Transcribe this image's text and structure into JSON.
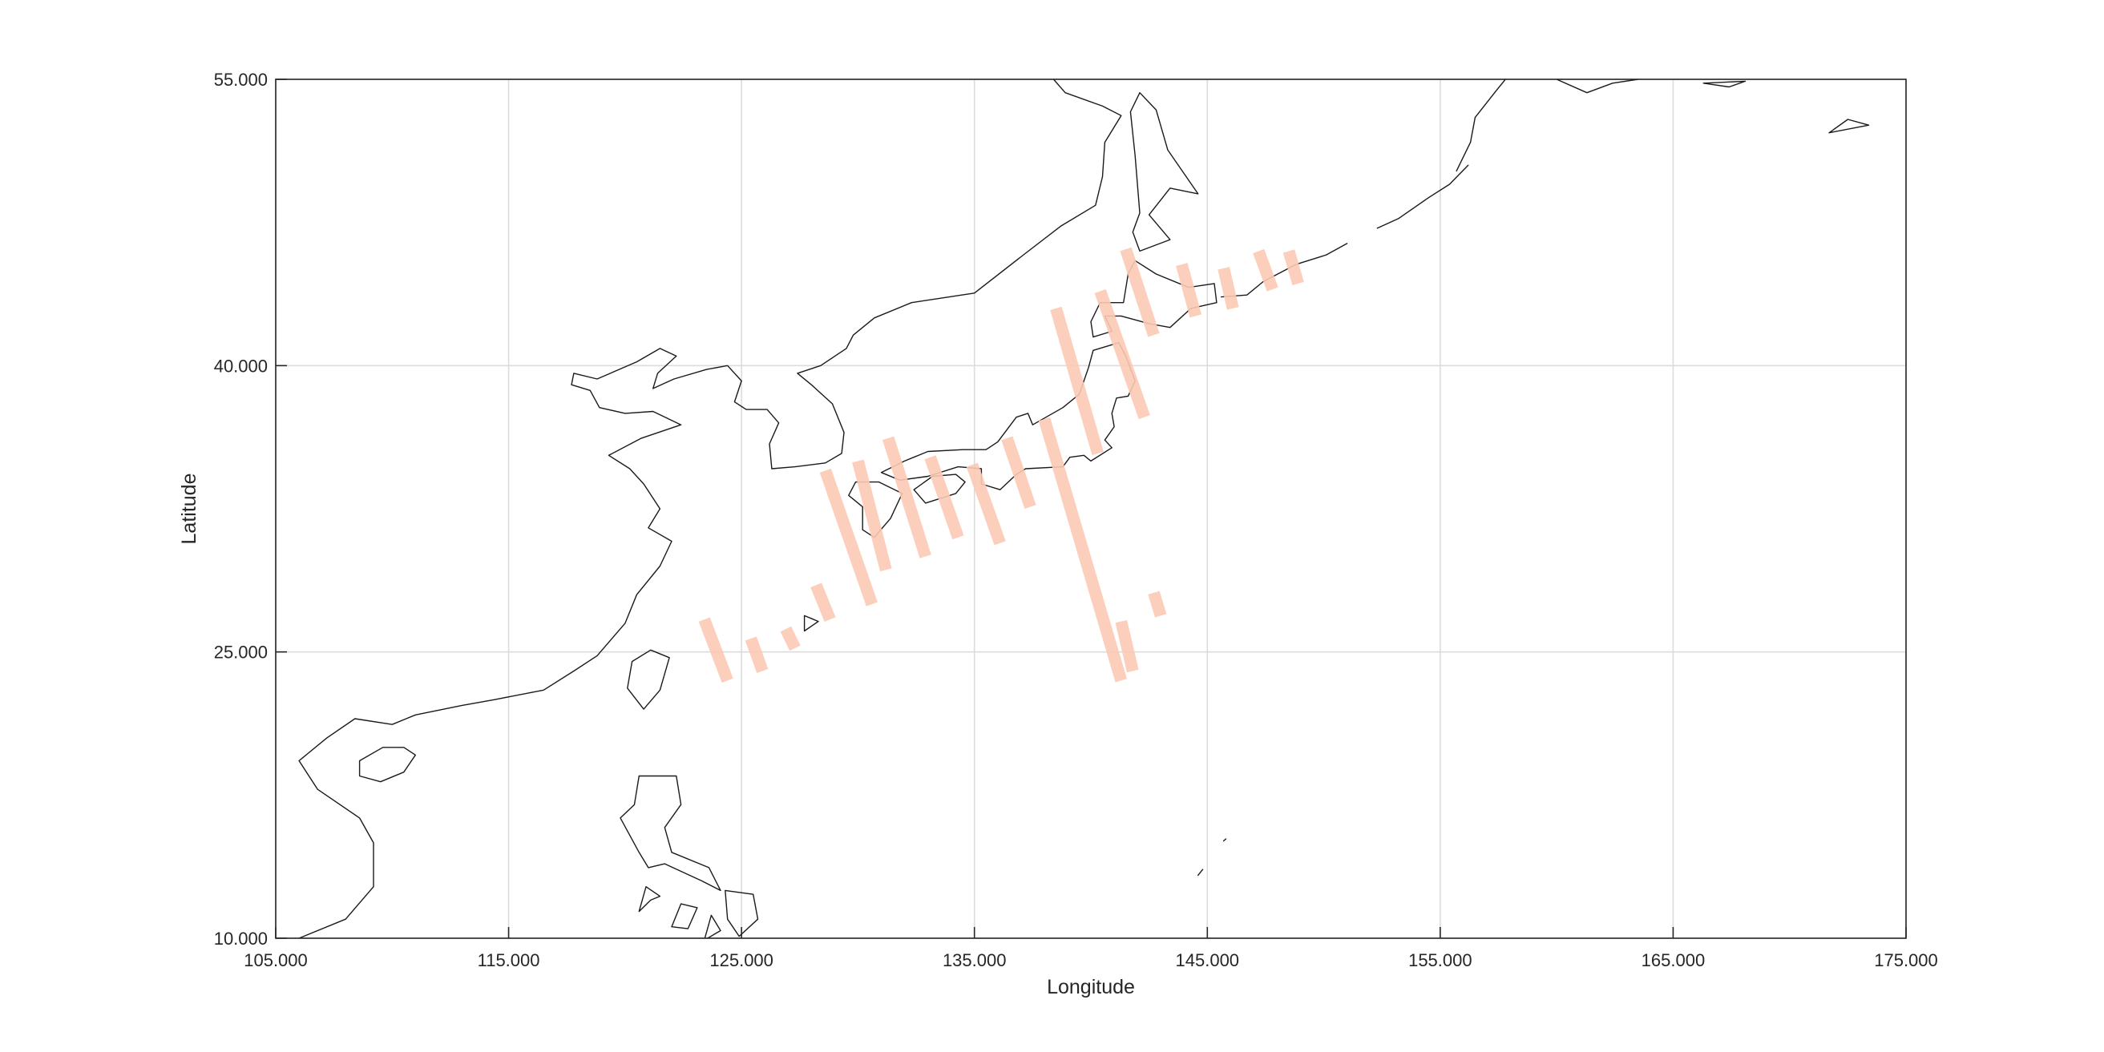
{
  "chart_data": {
    "type": "map",
    "xlabel": "Longitude",
    "ylabel": "Latitude",
    "xlim": [
      105,
      175
    ],
    "ylim": [
      10,
      55
    ],
    "xticks": [
      105,
      115,
      125,
      135,
      145,
      155,
      165,
      175
    ],
    "yticks": [
      10,
      25,
      40,
      55
    ],
    "xtick_labels": [
      "105.000",
      "115.000",
      "125.000",
      "135.000",
      "145.000",
      "155.000",
      "165.000",
      "175.000"
    ],
    "ytick_labels": [
      "10.000",
      "25.000",
      "40.000",
      "55.000"
    ],
    "grid": true,
    "track_color": "#fcc9b5",
    "coast_color": "#1a1a1a",
    "tracks": [
      {
        "from": [
          123.4,
          26.7
        ],
        "to": [
          124.4,
          23.5
        ]
      },
      {
        "from": [
          125.4,
          25.7
        ],
        "to": [
          125.9,
          24.0
        ]
      },
      {
        "from": [
          126.9,
          26.2
        ],
        "to": [
          127.3,
          25.2
        ]
      },
      {
        "from": [
          128.2,
          28.5
        ],
        "to": [
          128.8,
          26.7
        ]
      },
      {
        "from": [
          128.6,
          34.5
        ],
        "to": [
          130.6,
          27.5
        ]
      },
      {
        "from": [
          130.0,
          35.0
        ],
        "to": [
          131.2,
          29.3
        ]
      },
      {
        "from": [
          131.3,
          36.2
        ],
        "to": [
          132.9,
          30.0
        ]
      },
      {
        "from": [
          133.1,
          35.2
        ],
        "to": [
          134.3,
          31.0
        ]
      },
      {
        "from": [
          134.9,
          34.8
        ],
        "to": [
          136.1,
          30.7
        ]
      },
      {
        "from": [
          136.4,
          36.2
        ],
        "to": [
          137.4,
          32.6
        ]
      },
      {
        "from": [
          138.0,
          37.2
        ],
        "to": [
          141.3,
          23.5
        ]
      },
      {
        "from": [
          138.5,
          43.0
        ],
        "to": [
          140.3,
          35.4
        ]
      },
      {
        "from": [
          140.4,
          43.9
        ],
        "to": [
          142.3,
          37.3
        ]
      },
      {
        "from": [
          141.5,
          46.1
        ],
        "to": [
          142.7,
          41.6
        ]
      },
      {
        "from": [
          143.9,
          45.3
        ],
        "to": [
          144.5,
          42.6
        ]
      },
      {
        "from": [
          145.7,
          45.1
        ],
        "to": [
          146.1,
          43.0
        ]
      },
      {
        "from": [
          147.2,
          46.0
        ],
        "to": [
          147.8,
          44.0
        ]
      },
      {
        "from": [
          148.5,
          46.0
        ],
        "to": [
          148.9,
          44.3
        ]
      },
      {
        "from": [
          141.3,
          26.6
        ],
        "to": [
          141.8,
          24.0
        ]
      },
      {
        "from": [
          142.7,
          28.1
        ],
        "to": [
          143.0,
          26.9
        ]
      }
    ],
    "coastlines": [
      [
        [
          106,
          10
        ],
        [
          108,
          11
        ],
        [
          109.2,
          12.7
        ],
        [
          109.2,
          15
        ],
        [
          108.6,
          16.3
        ],
        [
          106.8,
          17.8
        ],
        [
          106,
          19.3
        ],
        [
          107.2,
          20.5
        ],
        [
          108.4,
          21.5
        ],
        [
          110,
          21.2
        ],
        [
          111,
          21.7
        ],
        [
          113,
          22.2
        ],
        [
          114.4,
          22.5
        ],
        [
          116.5,
          23
        ],
        [
          117.8,
          24
        ],
        [
          118.8,
          24.8
        ],
        [
          120,
          26.5
        ],
        [
          120.5,
          28
        ],
        [
          121.5,
          29.5
        ],
        [
          122,
          30.8
        ],
        [
          121,
          31.5
        ],
        [
          121.5,
          32.5
        ],
        [
          120.8,
          33.8
        ],
        [
          120.2,
          34.6
        ],
        [
          119.3,
          35.3
        ],
        [
          120.7,
          36.2
        ],
        [
          122.4,
          36.9
        ],
        [
          121.2,
          37.6
        ],
        [
          120,
          37.5
        ],
        [
          118.9,
          37.8
        ],
        [
          118.5,
          38.7
        ],
        [
          117.7,
          39
        ],
        [
          117.8,
          39.6
        ],
        [
          118.8,
          39.3
        ],
        [
          120.5,
          40.2
        ],
        [
          121.5,
          40.9
        ],
        [
          122.2,
          40.5
        ],
        [
          121.4,
          39.6
        ],
        [
          121.2,
          38.8
        ],
        [
          122.1,
          39.3
        ],
        [
          123.5,
          39.8
        ],
        [
          124.4,
          40
        ],
        [
          125,
          39.2
        ],
        [
          124.7,
          38.1
        ],
        [
          125.2,
          37.7
        ],
        [
          126.1,
          37.7
        ],
        [
          126.6,
          37
        ],
        [
          126.2,
          35.9
        ],
        [
          126.3,
          34.6
        ],
        [
          127.3,
          34.7
        ],
        [
          128.6,
          34.9
        ],
        [
          129.3,
          35.4
        ],
        [
          129.4,
          36.5
        ],
        [
          128.9,
          38
        ],
        [
          128,
          39
        ],
        [
          127.4,
          39.6
        ],
        [
          128.4,
          40
        ],
        [
          129.5,
          40.9
        ],
        [
          129.8,
          41.6
        ],
        [
          130.7,
          42.5
        ],
        [
          132.3,
          43.3
        ],
        [
          135,
          43.8
        ],
        [
          137,
          45.7
        ],
        [
          138.7,
          47.3
        ],
        [
          140.2,
          48.4
        ],
        [
          140.5,
          49.9
        ],
        [
          140.6,
          51.7
        ],
        [
          141.3,
          53.1
        ],
        [
          140.5,
          53.6
        ],
        [
          138.9,
          54.3
        ],
        [
          138.4,
          55
        ]
      ],
      [
        [
          130.9,
          33.9
        ],
        [
          131.9,
          33.3
        ],
        [
          131.4,
          32
        ],
        [
          130.7,
          31
        ],
        [
          130.2,
          31.4
        ],
        [
          130.2,
          32.6
        ],
        [
          129.6,
          33.2
        ],
        [
          129.9,
          33.9
        ],
        [
          130.9,
          33.9
        ]
      ],
      [
        [
          132.4,
          33.5
        ],
        [
          133.2,
          34.2
        ],
        [
          134.2,
          34.3
        ],
        [
          134.6,
          33.9
        ],
        [
          134.2,
          33.3
        ],
        [
          132.9,
          32.8
        ],
        [
          132.4,
          33.5
        ]
      ],
      [
        [
          131,
          34.4
        ],
        [
          132,
          35
        ],
        [
          133,
          35.5
        ],
        [
          134.5,
          35.6
        ],
        [
          135.5,
          35.6
        ],
        [
          136,
          36
        ],
        [
          136.8,
          37.3
        ],
        [
          137.3,
          37.5
        ],
        [
          137.5,
          36.9
        ],
        [
          138.8,
          37.8
        ],
        [
          139.5,
          38.5
        ],
        [
          139.9,
          39.9
        ],
        [
          140.1,
          40.8
        ],
        [
          141.2,
          41.2
        ],
        [
          141.5,
          40.5
        ],
        [
          141.9,
          39.2
        ],
        [
          141.6,
          38.4
        ],
        [
          141.1,
          38.3
        ],
        [
          140.9,
          37.5
        ],
        [
          141,
          36.8
        ],
        [
          140.6,
          36.1
        ],
        [
          140.9,
          35.7
        ],
        [
          140,
          35
        ],
        [
          139.7,
          35.3
        ],
        [
          139.1,
          35.2
        ],
        [
          138.8,
          34.7
        ],
        [
          137.2,
          34.6
        ],
        [
          136.8,
          34.3
        ],
        [
          136.1,
          33.5
        ],
        [
          135.3,
          33.8
        ],
        [
          135.3,
          34.6
        ],
        [
          134.3,
          34.7
        ],
        [
          133,
          34.2
        ],
        [
          131.8,
          34
        ],
        [
          131,
          34.4
        ]
      ],
      [
        [
          140.1,
          41.5
        ],
        [
          140,
          42.3
        ],
        [
          140.4,
          43.3
        ],
        [
          141.4,
          43.3
        ],
        [
          141.6,
          44.8
        ],
        [
          141.9,
          45.5
        ],
        [
          142.8,
          44.8
        ],
        [
          144.2,
          44.1
        ],
        [
          145.3,
          44.3
        ],
        [
          145.4,
          43.3
        ],
        [
          144.3,
          43
        ],
        [
          143.4,
          42
        ],
        [
          142.5,
          42.2
        ],
        [
          141.3,
          42.6
        ],
        [
          140.6,
          42.6
        ],
        [
          140.9,
          41.8
        ],
        [
          140.1,
          41.5
        ]
      ],
      [
        [
          142.1,
          54.3
        ],
        [
          142.8,
          53.4
        ],
        [
          143.3,
          51.3
        ],
        [
          144.6,
          49
        ],
        [
          143.4,
          49.3
        ],
        [
          142.5,
          47.9
        ],
        [
          143.4,
          46.6
        ],
        [
          142.1,
          46
        ],
        [
          141.8,
          47
        ],
        [
          142.1,
          48
        ],
        [
          141.9,
          51
        ],
        [
          141.7,
          53.3
        ],
        [
          142.1,
          54.3
        ]
      ],
      [
        [
          121.1,
          25.1
        ],
        [
          121.9,
          24.7
        ],
        [
          121.5,
          23
        ],
        [
          120.8,
          22
        ],
        [
          120.1,
          23.1
        ],
        [
          120.3,
          24.5
        ],
        [
          121.1,
          25.1
        ]
      ],
      [
        [
          109.6,
          20
        ],
        [
          110.5,
          20
        ],
        [
          111,
          19.6
        ],
        [
          110.5,
          18.7
        ],
        [
          109.5,
          18.2
        ],
        [
          108.6,
          18.5
        ],
        [
          108.6,
          19.3
        ],
        [
          109.6,
          20
        ]
      ],
      [
        [
          120.6,
          18.5
        ],
        [
          122.2,
          18.5
        ],
        [
          122.4,
          17
        ],
        [
          121.7,
          15.8
        ],
        [
          122,
          14.5
        ],
        [
          123.6,
          13.7
        ],
        [
          124.1,
          12.5
        ],
        [
          123.3,
          13
        ],
        [
          121.7,
          13.9
        ],
        [
          121,
          13.7
        ],
        [
          120.6,
          14.5
        ],
        [
          119.8,
          16.3
        ],
        [
          120.4,
          17
        ],
        [
          120.6,
          18.5
        ]
      ],
      [
        [
          124.3,
          12.5
        ],
        [
          125.5,
          12.3
        ],
        [
          125.7,
          11
        ],
        [
          124.9,
          10.1
        ],
        [
          124.4,
          11
        ],
        [
          124.3,
          12.5
        ]
      ],
      [
        [
          123.7,
          11.2
        ],
        [
          124.1,
          10.4
        ],
        [
          123.4,
          9.9
        ],
        [
          123.7,
          11.2
        ]
      ],
      [
        [
          122.4,
          11.8
        ],
        [
          123.1,
          11.6
        ],
        [
          122.7,
          10.5
        ],
        [
          122,
          10.6
        ],
        [
          122.4,
          11.8
        ]
      ],
      [
        [
          120.6,
          11.4
        ],
        [
          121.1,
          12
        ],
        [
          121.5,
          12.2
        ],
        [
          120.9,
          12.7
        ],
        [
          120.6,
          11.4
        ]
      ],
      [
        [
          127.7,
          26.9
        ],
        [
          128.3,
          26.6
        ],
        [
          127.7,
          26.1
        ],
        [
          127.7,
          26.9
        ]
      ],
      [
        [
          155.7,
          50.2
        ],
        [
          156.3,
          51.7
        ],
        [
          156.5,
          53
        ],
        [
          157.4,
          54.4
        ],
        [
          157.8,
          55
        ]
      ],
      [
        [
          160,
          55
        ],
        [
          161.3,
          54.3
        ],
        [
          162.4,
          54.8
        ],
        [
          163.5,
          55
        ]
      ],
      [
        [
          171.7,
          52.2
        ],
        [
          172.5,
          52.9
        ],
        [
          173.4,
          52.6
        ],
        [
          171.7,
          52.2
        ]
      ],
      [
        [
          166.3,
          54.8
        ],
        [
          167.4,
          54.6
        ],
        [
          168.1,
          54.9
        ],
        [
          166.3,
          54.8
        ]
      ],
      [
        [
          145.6,
          43.6
        ],
        [
          146.7,
          43.7
        ],
        [
          147.4,
          44.4
        ],
        [
          148.8,
          45.3
        ],
        [
          150.1,
          45.8
        ],
        [
          151,
          46.4
        ]
      ],
      [
        [
          152.3,
          47.2
        ],
        [
          153.2,
          47.7
        ],
        [
          154.5,
          48.8
        ],
        [
          155.4,
          49.5
        ],
        [
          156.2,
          50.5
        ]
      ],
      [
        [
          145.8,
          15.2
        ],
        [
          145.7,
          15.1
        ]
      ],
      [
        [
          144.8,
          13.6
        ],
        [
          144.6,
          13.3
        ]
      ]
    ]
  }
}
